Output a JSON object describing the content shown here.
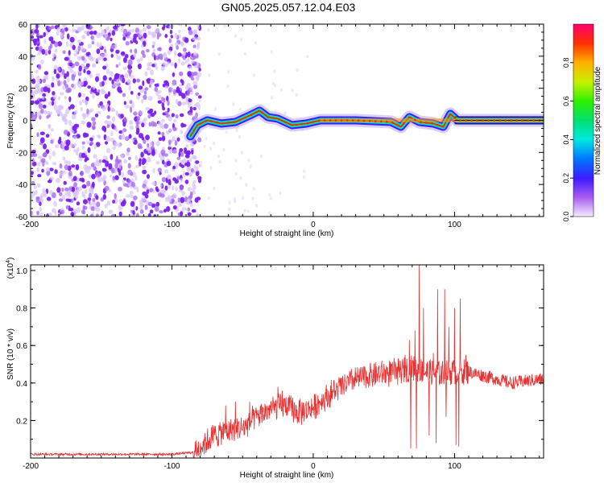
{
  "title": "GN05.2025.057.12.04.E03",
  "colors": {
    "snr_line": "#e83030",
    "spectrogram_noise": "#8a3df0",
    "track_peak": "#e02020"
  },
  "chart_data": [
    {
      "type": "heatmap",
      "title": "GN05.2025.057.12.04.E03",
      "xlabel": "Height of straight line (km)",
      "ylabel": "Frequency (Hz)",
      "xlim": [
        -200,
        163
      ],
      "ylim": [
        -60,
        60
      ],
      "x_ticks": [
        -200,
        -100,
        0,
        100
      ],
      "y_ticks": [
        -60,
        -40,
        -20,
        0,
        20,
        40,
        60
      ],
      "colorbar": {
        "label": "Normalized spectral amplitude",
        "range": [
          0,
          1
        ],
        "ticks": [
          0.0,
          0.2,
          0.4,
          0.6,
          0.8
        ],
        "tick_labels": [
          "0.0",
          "0.2",
          "0.4",
          "0.6",
          "0.8"
        ]
      },
      "noise_region_x": [
        -200,
        -80
      ],
      "track": [
        {
          "x": -87,
          "y": -10
        },
        {
          "x": -82,
          "y": -3
        },
        {
          "x": -75,
          "y": 0
        },
        {
          "x": -65,
          "y": -2
        },
        {
          "x": -55,
          "y": -1
        },
        {
          "x": -45,
          "y": 3
        },
        {
          "x": -38,
          "y": 6
        },
        {
          "x": -32,
          "y": 2
        },
        {
          "x": -25,
          "y": 1
        },
        {
          "x": -15,
          "y": -3
        },
        {
          "x": -5,
          "y": -2
        },
        {
          "x": 5,
          "y": 0
        },
        {
          "x": 30,
          "y": 0
        },
        {
          "x": 55,
          "y": -1
        },
        {
          "x": 62,
          "y": -4
        },
        {
          "x": 68,
          "y": 2
        },
        {
          "x": 75,
          "y": -1
        },
        {
          "x": 85,
          "y": -2
        },
        {
          "x": 92,
          "y": -4
        },
        {
          "x": 97,
          "y": 4
        },
        {
          "x": 102,
          "y": 0
        },
        {
          "x": 163,
          "y": 0
        }
      ]
    },
    {
      "type": "line",
      "xlabel": "Height of straight line (km)",
      "ylabel": "SNR (10 * v/v)",
      "y_multiplier": "(x10",
      "y_multiplier_exp": "4",
      "y_multiplier_close": ")",
      "xlim": [
        -200,
        163
      ],
      "ylim": [
        0,
        1.03
      ],
      "x_ticks": [
        -200,
        -100,
        0,
        100
      ],
      "y_ticks": [
        0.2,
        0.4,
        0.6,
        0.8,
        1.0
      ],
      "series": [
        {
          "envelope": [
            {
              "x": -200,
              "y": 0.02
            },
            {
              "x": -150,
              "y": 0.02
            },
            {
              "x": -100,
              "y": 0.02
            },
            {
              "x": -85,
              "y": 0.03
            },
            {
              "x": -70,
              "y": 0.12
            },
            {
              "x": -60,
              "y": 0.15
            },
            {
              "x": -50,
              "y": 0.16
            },
            {
              "x": -40,
              "y": 0.22
            },
            {
              "x": -30,
              "y": 0.26
            },
            {
              "x": -20,
              "y": 0.28
            },
            {
              "x": -10,
              "y": 0.24
            },
            {
              "x": 0,
              "y": 0.27
            },
            {
              "x": 10,
              "y": 0.33
            },
            {
              "x": 20,
              "y": 0.38
            },
            {
              "x": 30,
              "y": 0.42
            },
            {
              "x": 40,
              "y": 0.44
            },
            {
              "x": 50,
              "y": 0.45
            },
            {
              "x": 60,
              "y": 0.46
            },
            {
              "x": 70,
              "y": 0.48
            },
            {
              "x": 80,
              "y": 0.46
            },
            {
              "x": 90,
              "y": 0.45
            },
            {
              "x": 100,
              "y": 0.46
            },
            {
              "x": 110,
              "y": 0.46
            },
            {
              "x": 120,
              "y": 0.44
            },
            {
              "x": 130,
              "y": 0.42
            },
            {
              "x": 140,
              "y": 0.4
            },
            {
              "x": 150,
              "y": 0.41
            },
            {
              "x": 163,
              "y": 0.42
            }
          ],
          "spikes": [
            {
              "x": -62,
              "y": 0.28
            },
            {
              "x": -55,
              "y": 0.3
            },
            {
              "x": -45,
              "y": 0.3
            },
            {
              "x": -25,
              "y": 0.38
            },
            {
              "x": -22,
              "y": 0.36
            },
            {
              "x": 65,
              "y": 0.55
            },
            {
              "x": 68,
              "y": 0.63
            },
            {
              "x": 72,
              "y": 0.68
            },
            {
              "x": 75,
              "y": 1.03
            },
            {
              "x": 78,
              "y": 0.8
            },
            {
              "x": 85,
              "y": 0.56
            },
            {
              "x": 88,
              "y": 0.9
            },
            {
              "x": 93,
              "y": 0.9
            },
            {
              "x": 96,
              "y": 0.7
            },
            {
              "x": 100,
              "y": 0.8
            },
            {
              "x": 104,
              "y": 0.85
            },
            {
              "x": 108,
              "y": 0.55
            }
          ],
          "dips": [
            {
              "x": 69,
              "y": 0.05
            },
            {
              "x": 73,
              "y": 0.05
            },
            {
              "x": 82,
              "y": 0.12
            },
            {
              "x": 87,
              "y": 0.08
            },
            {
              "x": 94,
              "y": 0.22
            },
            {
              "x": 101,
              "y": 0.07
            },
            {
              "x": 103,
              "y": 0.06
            }
          ]
        }
      ]
    }
  ]
}
